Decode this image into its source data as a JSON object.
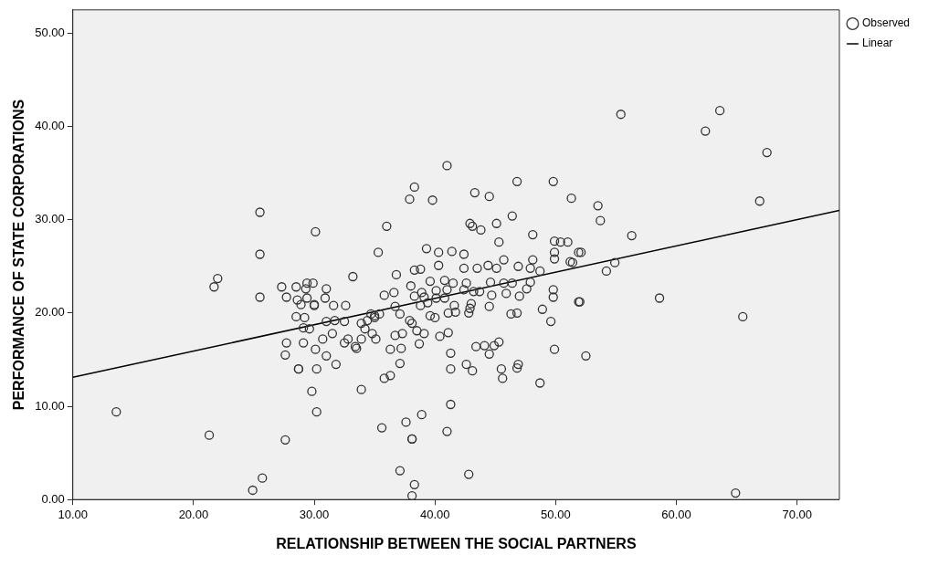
{
  "chart_data": {
    "type": "scatter",
    "xlabel": "RELATIONSHIP BETWEEN THE SOCIAL PARTNERS",
    "ylabel": "PERFORMANCE OF STATE CORPORATIONS",
    "xlim": [
      10,
      73.5
    ],
    "ylim": [
      0,
      52.5
    ],
    "xticks": [
      {
        "value": 10,
        "label": "10.00"
      },
      {
        "value": 20,
        "label": "20.00"
      },
      {
        "value": 30,
        "label": "30.00"
      },
      {
        "value": 40,
        "label": "40.00"
      },
      {
        "value": 50,
        "label": "50.00"
      },
      {
        "value": 60,
        "label": "60.00"
      },
      {
        "value": 70,
        "label": "70.00"
      }
    ],
    "yticks": [
      {
        "value": 0,
        "label": "0.00"
      },
      {
        "value": 10,
        "label": "10.00"
      },
      {
        "value": 20,
        "label": "20.00"
      },
      {
        "value": 30,
        "label": "30.00"
      },
      {
        "value": 40,
        "label": "40.00"
      },
      {
        "value": 50,
        "label": "50.00"
      }
    ],
    "grid": false,
    "legend": "top right",
    "marker": "circle",
    "series": [
      {
        "name": "Observed",
        "type": "scatter",
        "color": "#333333",
        "x": [
          25.5,
          30.1,
          25.5,
          22.0,
          21.7,
          25.5,
          27.3,
          28.5,
          29.4,
          29.3,
          27.7,
          28.6,
          29.4,
          30.0,
          28.9,
          28.5,
          29.2,
          29.1,
          27.7,
          29.1,
          27.6,
          28.7,
          28.7,
          30.2,
          29.8,
          13.6,
          30.2,
          21.3,
          27.6,
          25.7,
          24.9,
          41.0,
          38.3,
          37.9,
          39.8,
          36.0,
          43.3,
          44.5,
          46.8,
          49.8,
          51.3,
          46.4,
          42.9,
          43.1,
          43.8,
          45.1,
          48.1,
          45.3,
          49.9,
          50.4,
          51.0,
          35.3,
          39.3,
          40.3,
          41.4,
          42.4,
          49.9,
          51.9,
          48.1,
          55.4,
          63.6,
          62.4,
          67.5,
          66.9,
          53.5,
          53.7,
          56.3,
          52.1,
          54.9,
          54.2,
          51.4,
          52.0,
          58.6,
          65.5,
          52.5,
          64.9,
          33.2,
          36.8,
          38.3,
          38.8,
          40.3,
          42.4,
          43.5,
          44.4,
          45.1,
          45.7,
          46.9,
          47.9,
          48.7,
          49.9,
          51.2,
          49.8,
          49.8,
          51.9,
          48.9,
          49.6,
          49.9,
          46.3,
          46.8,
          44.5,
          45.3,
          44.9,
          44.1,
          43.4,
          44.5,
          46.9,
          46.8,
          45.5,
          45.6,
          48.7,
          42.6,
          43.1,
          41.3,
          41.3,
          41.1,
          40.4,
          41.3,
          41.0,
          42.8,
          38.9,
          37.6,
          35.6,
          38.1,
          38.1,
          37.1,
          38.3,
          38.1,
          33.9,
          37.1,
          35.8,
          36.3,
          36.3,
          37.2,
          38.7,
          36.7,
          37.3,
          39.1,
          38.5,
          38.1,
          37.9,
          39.6,
          40.0,
          41.1,
          41.7,
          42.8,
          42.9,
          41.6,
          43.0,
          42.4,
          43.2,
          42.6,
          43.7,
          44.7,
          45.9,
          47.0,
          47.6,
          44.6,
          45.7,
          46.4,
          47.9,
          40.8,
          41.5,
          39.6,
          38.0,
          38.9,
          40.1,
          40.8,
          40.1,
          41.0,
          38.3,
          39.1,
          39.4,
          38.8,
          35.8,
          36.6,
          36.7,
          37.1,
          35.0,
          34.7,
          35.0,
          35.4,
          34.4,
          33.9,
          34.2,
          34.8,
          35.1,
          33.9,
          32.8,
          33.4,
          33.5,
          32.5,
          31.5,
          30.7,
          30.1,
          31.0,
          31.8,
          31.0,
          31.7,
          32.5,
          32.6,
          31.6,
          30.0,
          30.9,
          31.0,
          29.9,
          29.6
        ],
        "values": [
          30.8,
          28.7,
          26.3,
          23.7,
          22.8,
          21.7,
          22.8,
          22.8,
          23.2,
          22.6,
          21.7,
          21.4,
          21.6,
          20.9,
          20.9,
          19.6,
          19.5,
          18.4,
          16.8,
          16.8,
          15.5,
          14.0,
          14.0,
          14.0,
          11.6,
          9.4,
          9.4,
          6.9,
          6.4,
          2.3,
          1.0,
          35.8,
          33.5,
          32.2,
          32.1,
          29.3,
          32.9,
          32.5,
          34.1,
          34.1,
          32.3,
          30.4,
          29.6,
          29.3,
          28.9,
          29.6,
          28.4,
          27.6,
          27.7,
          27.6,
          27.6,
          26.5,
          26.9,
          26.5,
          26.6,
          26.3,
          26.5,
          26.5,
          25.7,
          41.3,
          41.7,
          39.5,
          37.2,
          32.0,
          31.5,
          29.9,
          28.3,
          26.5,
          25.4,
          24.5,
          25.4,
          21.2,
          21.6,
          19.6,
          15.4,
          0.7,
          23.9,
          24.1,
          24.6,
          24.7,
          25.1,
          24.8,
          24.8,
          25.1,
          24.8,
          25.7,
          25.0,
          24.8,
          24.5,
          25.8,
          25.5,
          22.5,
          21.7,
          21.2,
          20.4,
          19.1,
          16.1,
          19.9,
          20.0,
          20.7,
          16.9,
          16.5,
          16.5,
          16.4,
          15.6,
          14.5,
          14.1,
          14.0,
          13.0,
          12.5,
          14.5,
          13.8,
          15.7,
          14.0,
          17.9,
          17.5,
          10.2,
          7.3,
          2.7,
          9.1,
          8.3,
          7.7,
          6.5,
          6.5,
          3.1,
          1.6,
          0.4,
          11.8,
          14.6,
          13.0,
          13.3,
          16.1,
          16.2,
          16.7,
          17.6,
          17.8,
          17.8,
          18.1,
          18.9,
          19.2,
          19.7,
          19.5,
          20.0,
          20.1,
          20.0,
          20.5,
          20.8,
          21.0,
          22.5,
          22.3,
          23.2,
          22.3,
          21.9,
          22.1,
          21.8,
          22.6,
          23.3,
          23.2,
          23.2,
          23.3,
          23.5,
          23.2,
          23.4,
          22.9,
          22.2,
          21.6,
          21.6,
          22.4,
          22.5,
          21.8,
          21.7,
          21.1,
          20.8,
          21.9,
          22.2,
          20.7,
          19.9,
          19.7,
          19.9,
          19.5,
          19.9,
          19.2,
          18.9,
          18.3,
          17.8,
          17.2,
          17.2,
          17.2,
          16.4,
          16.2,
          16.8,
          17.8,
          17.2,
          16.1,
          15.4,
          14.5,
          19.1,
          19.2,
          19.1,
          20.8,
          20.8,
          20.8,
          21.6,
          22.6,
          23.2,
          18.3
        ]
      },
      {
        "name": "Linear",
        "type": "line",
        "color": "#000000",
        "marker": "none",
        "line_style": "solid",
        "x": [
          10,
          73.5
        ],
        "values": [
          13.1,
          31.0
        ]
      }
    ]
  }
}
